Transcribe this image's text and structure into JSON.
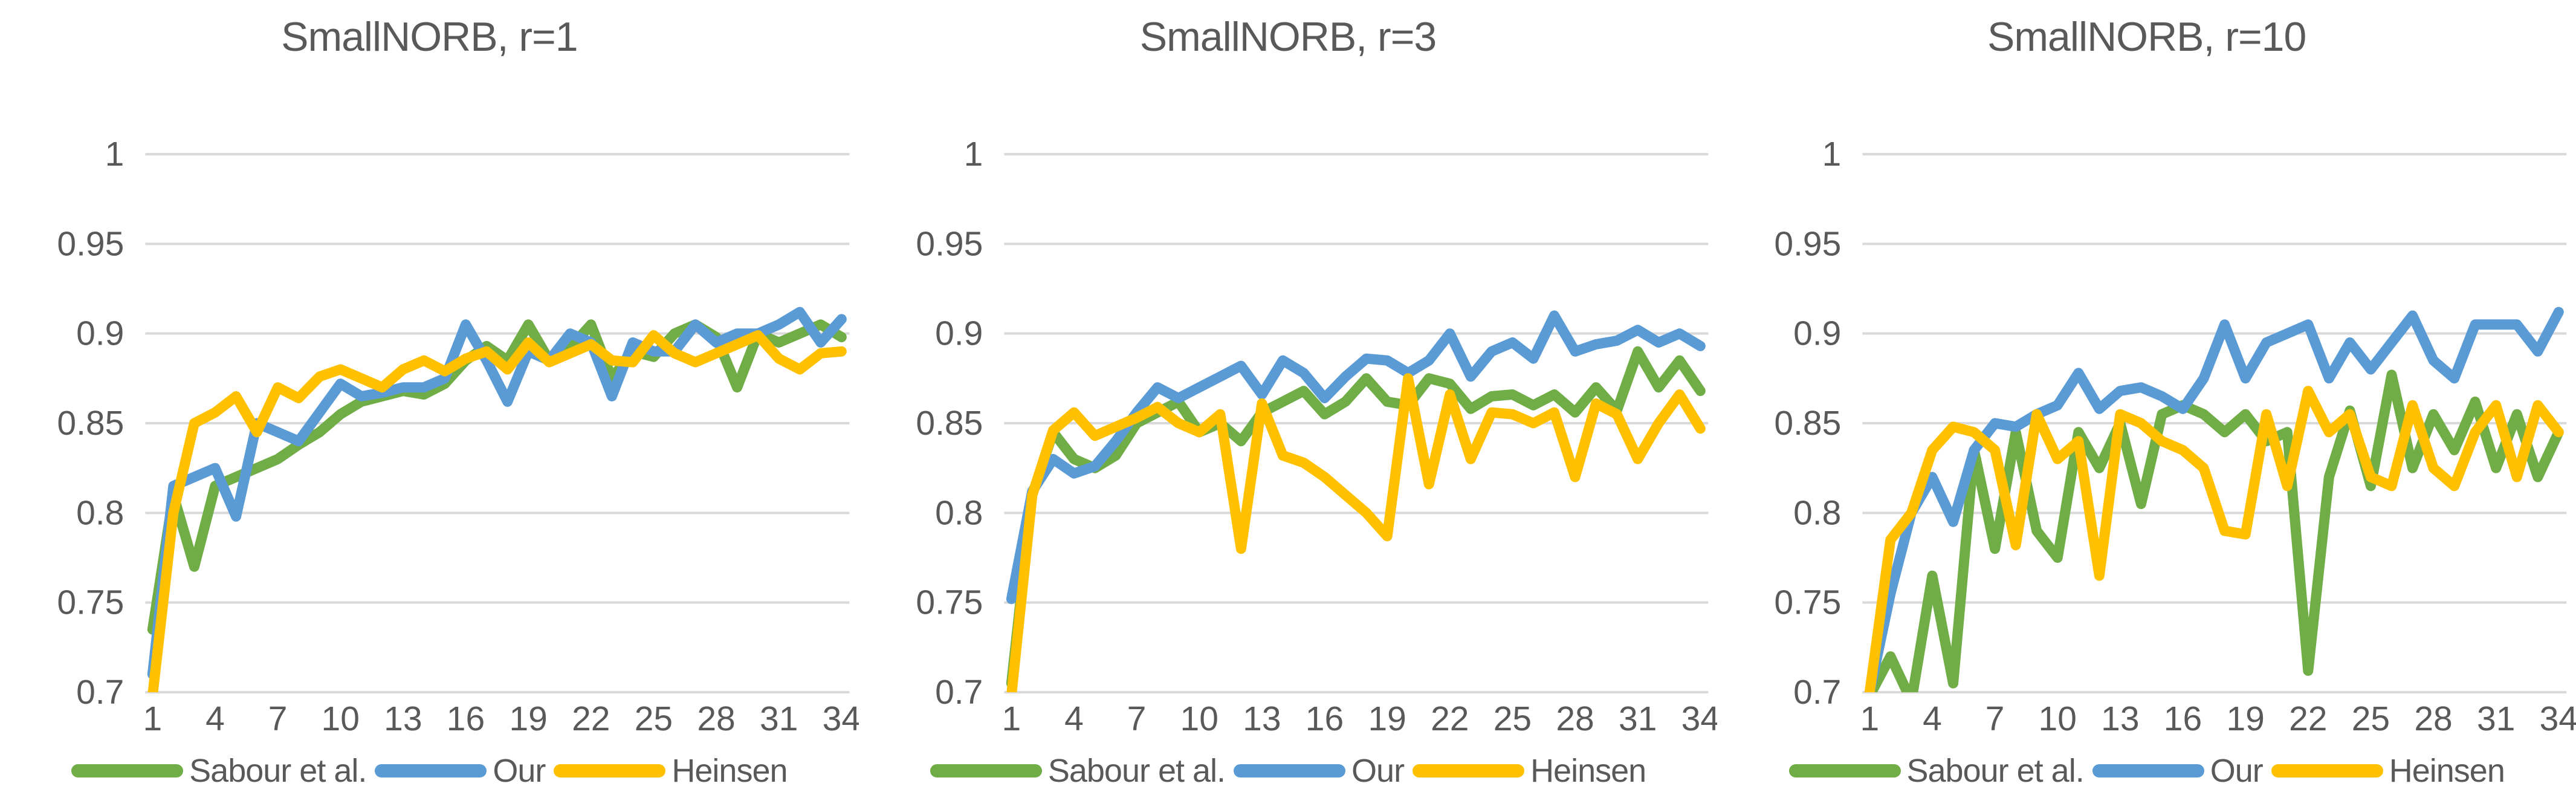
{
  "colors": {
    "background": "#FFFFFF",
    "gridline": "#D9D9D9",
    "text": "#595959",
    "sabour_green": "#70AD47",
    "our_blue": "#5B9BD5",
    "heinsen_yellow": "#FFC000"
  },
  "legend": {
    "items": [
      {
        "label": "Sabour et al.",
        "color": "#70AD47"
      },
      {
        "label": "Our",
        "color": "#5B9BD5"
      },
      {
        "label": "Heinsen",
        "color": "#FFC000"
      }
    ]
  },
  "axes": {
    "ylim": [
      0.7,
      1.0
    ],
    "y_tick_labels": [
      "1",
      "0.95",
      "0.9",
      "0.85",
      "0.8",
      "0.75",
      "0.7"
    ],
    "y_tick_values": [
      1,
      0.95,
      0.9,
      0.85,
      0.8,
      0.75,
      0.7
    ],
    "x_tick_labels": [
      "1",
      "4",
      "7",
      "10",
      "13",
      "16",
      "19",
      "22",
      "25",
      "28",
      "31",
      "34"
    ],
    "x_tick_values": [
      1,
      4,
      7,
      10,
      13,
      16,
      19,
      22,
      25,
      28,
      31,
      34
    ],
    "x_range": [
      1,
      34
    ],
    "grid": "horizontal"
  },
  "chart_data": [
    {
      "type": "line",
      "title": "SmallNORB, r=1",
      "xlabel": "",
      "ylabel": "",
      "x_start": 1,
      "x_step": 1,
      "ylim": [
        0.7,
        1.0
      ],
      "series": [
        {
          "name": "Sabour et al.",
          "color": "#70AD47",
          "values": [
            0.735,
            0.81,
            0.77,
            0.815,
            0.82,
            0.825,
            0.83,
            0.838,
            0.845,
            0.855,
            0.862,
            0.865,
            0.868,
            0.866,
            0.872,
            0.885,
            0.893,
            0.885,
            0.905,
            0.885,
            0.892,
            0.905,
            0.875,
            0.89,
            0.887,
            0.9,
            0.905,
            0.898,
            0.87,
            0.9,
            0.895,
            0.9,
            0.905,
            0.898
          ]
        },
        {
          "name": "Our",
          "color": "#5B9BD5",
          "values": [
            0.71,
            0.815,
            0.82,
            0.825,
            0.798,
            0.85,
            0.845,
            0.84,
            0.856,
            0.872,
            0.865,
            0.867,
            0.87,
            0.87,
            0.875,
            0.905,
            0.885,
            0.862,
            0.89,
            0.885,
            0.9,
            0.895,
            0.865,
            0.895,
            0.89,
            0.89,
            0.905,
            0.895,
            0.9,
            0.9,
            0.905,
            0.912,
            0.895,
            0.908
          ]
        },
        {
          "name": "Heinsen",
          "color": "#FFC000",
          "values": [
            0.698,
            0.8,
            0.85,
            0.856,
            0.865,
            0.845,
            0.87,
            0.864,
            0.876,
            0.88,
            0.875,
            0.87,
            0.88,
            0.885,
            0.879,
            0.886,
            0.89,
            0.88,
            0.895,
            0.884,
            0.889,
            0.894,
            0.885,
            0.884,
            0.899,
            0.889,
            0.884,
            0.889,
            0.894,
            0.899,
            0.886,
            0.88,
            0.889,
            0.89
          ]
        }
      ]
    },
    {
      "type": "line",
      "title": "SmallNORB, r=3",
      "xlabel": "",
      "ylabel": "",
      "x_start": 1,
      "x_step": 1,
      "ylim": [
        0.7,
        1.0
      ],
      "series": [
        {
          "name": "Sabour et al.",
          "color": "#70AD47",
          "values": [
            0.705,
            0.81,
            0.845,
            0.83,
            0.825,
            0.832,
            0.85,
            0.856,
            0.862,
            0.845,
            0.85,
            0.84,
            0.856,
            0.862,
            0.868,
            0.855,
            0.862,
            0.875,
            0.862,
            0.86,
            0.875,
            0.872,
            0.858,
            0.865,
            0.866,
            0.86,
            0.866,
            0.856,
            0.87,
            0.857,
            0.89,
            0.87,
            0.885,
            0.868
          ]
        },
        {
          "name": "Our",
          "color": "#5B9BD5",
          "values": [
            0.752,
            0.812,
            0.83,
            0.822,
            0.826,
            0.84,
            0.856,
            0.87,
            0.864,
            0.87,
            0.876,
            0.882,
            0.866,
            0.885,
            0.878,
            0.864,
            0.876,
            0.886,
            0.885,
            0.878,
            0.885,
            0.9,
            0.876,
            0.89,
            0.895,
            0.886,
            0.91,
            0.89,
            0.894,
            0.896,
            0.902,
            0.895,
            0.9,
            0.893
          ]
        },
        {
          "name": "Heinsen",
          "color": "#FFC000",
          "values": [
            0.698,
            0.81,
            0.846,
            0.856,
            0.843,
            0.848,
            0.853,
            0.859,
            0.85,
            0.845,
            0.855,
            0.78,
            0.861,
            0.832,
            0.828,
            0.82,
            0.81,
            0.8,
            0.787,
            0.875,
            0.816,
            0.866,
            0.83,
            0.856,
            0.855,
            0.85,
            0.856,
            0.82,
            0.861,
            0.855,
            0.83,
            0.85,
            0.866,
            0.847
          ]
        }
      ]
    },
    {
      "type": "line",
      "title": "SmallNORB, r=10",
      "xlabel": "",
      "ylabel": "",
      "x_start": 1,
      "x_step": 1,
      "ylim": [
        0.7,
        1.0
      ],
      "series": [
        {
          "name": "Sabour et al.",
          "color": "#70AD47",
          "values": [
            0.698,
            0.72,
            0.695,
            0.765,
            0.705,
            0.835,
            0.78,
            0.845,
            0.79,
            0.775,
            0.845,
            0.825,
            0.85,
            0.805,
            0.855,
            0.86,
            0.855,
            0.845,
            0.855,
            0.84,
            0.845,
            0.712,
            0.82,
            0.857,
            0.815,
            0.877,
            0.825,
            0.855,
            0.835,
            0.862,
            0.825,
            0.855,
            0.82,
            0.845
          ]
        },
        {
          "name": "Our",
          "color": "#5B9BD5",
          "values": [
            0.7,
            0.755,
            0.8,
            0.82,
            0.795,
            0.835,
            0.85,
            0.848,
            0.855,
            0.86,
            0.878,
            0.858,
            0.868,
            0.87,
            0.865,
            0.858,
            0.875,
            0.905,
            0.875,
            0.895,
            0.9,
            0.905,
            0.875,
            0.895,
            0.88,
            0.895,
            0.91,
            0.885,
            0.875,
            0.905,
            0.905,
            0.905,
            0.89,
            0.912
          ]
        },
        {
          "name": "Heinsen",
          "color": "#FFC000",
          "values": [
            0.7,
            0.785,
            0.8,
            0.835,
            0.848,
            0.845,
            0.835,
            0.782,
            0.855,
            0.83,
            0.84,
            0.765,
            0.855,
            0.85,
            0.84,
            0.835,
            0.825,
            0.79,
            0.788,
            0.855,
            0.815,
            0.868,
            0.845,
            0.855,
            0.82,
            0.815,
            0.86,
            0.825,
            0.815,
            0.845,
            0.86,
            0.82,
            0.86,
            0.845
          ]
        }
      ]
    }
  ]
}
